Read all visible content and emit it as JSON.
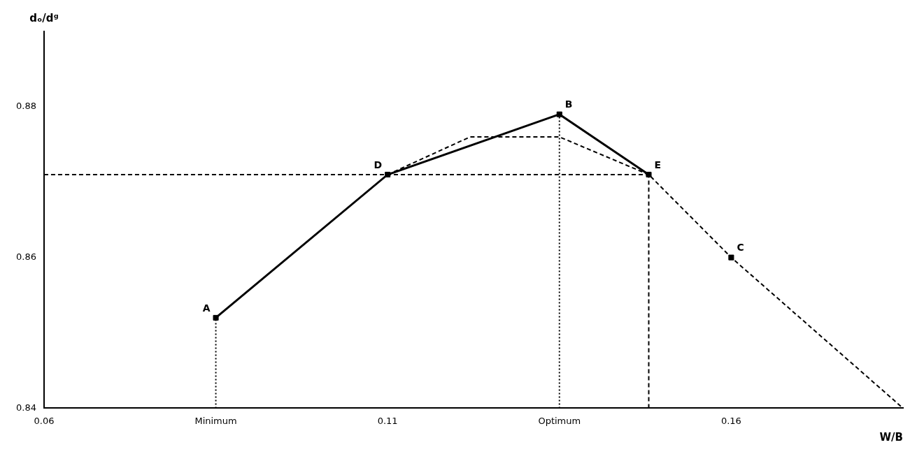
{
  "chart_data": {
    "type": "line",
    "xlabel": "W/B",
    "ylabel": "dₒ/dᵍ",
    "xlim": [
      0.06,
      0.185
    ],
    "ylim": [
      0.84,
      0.89
    ],
    "xticks": [
      0.06,
      {
        "value": 0.085,
        "label": "Minimum"
      },
      0.11,
      {
        "value": 0.135,
        "label": "Optimum"
      },
      0.16
    ],
    "yticks": [
      0.84,
      0.86,
      0.88
    ],
    "grid": false,
    "color": "#000000",
    "series": [
      {
        "x": [
          0.085,
          0.11,
          0.135,
          0.148
        ],
        "values": [
          0.852,
          0.871,
          0.879,
          0.871
        ],
        "line_style": "solid"
      },
      {
        "x": [
          0.11,
          0.122,
          0.135,
          0.148,
          0.16,
          0.175,
          0.185
        ],
        "values": [
          0.871,
          0.876,
          0.876,
          0.871,
          0.86,
          0.848,
          0.84
        ],
        "line_style": "dashed"
      },
      {
        "x": [
          0.06,
          0.148
        ],
        "values": [
          0.871,
          0.871
        ],
        "line_style": "dashed"
      },
      {
        "x": [
          0.085,
          0.085
        ],
        "values": [
          0.84,
          0.852
        ],
        "line_style": "dotted"
      },
      {
        "x": [
          0.135,
          0.135
        ],
        "values": [
          0.84,
          0.879
        ],
        "line_style": "dotted"
      },
      {
        "x": [
          0.148,
          0.148
        ],
        "values": [
          0.84,
          0.871
        ],
        "line_style": "dashed"
      },
      {
        "type": "scatter",
        "marker": "square",
        "x": [
          0.085,
          0.135,
          0.16,
          0.11,
          0.148
        ],
        "values": [
          0.852,
          0.879,
          0.86,
          0.871,
          0.871
        ]
      }
    ],
    "annotations": [
      {
        "text": "A",
        "x": 0.085,
        "y": 0.852
      },
      {
        "text": "B",
        "x": 0.135,
        "y": 0.879
      },
      {
        "text": "C",
        "x": 0.16,
        "y": 0.86
      },
      {
        "text": "D",
        "x": 0.11,
        "y": 0.871
      },
      {
        "text": "E",
        "x": 0.148,
        "y": 0.871
      }
    ]
  }
}
